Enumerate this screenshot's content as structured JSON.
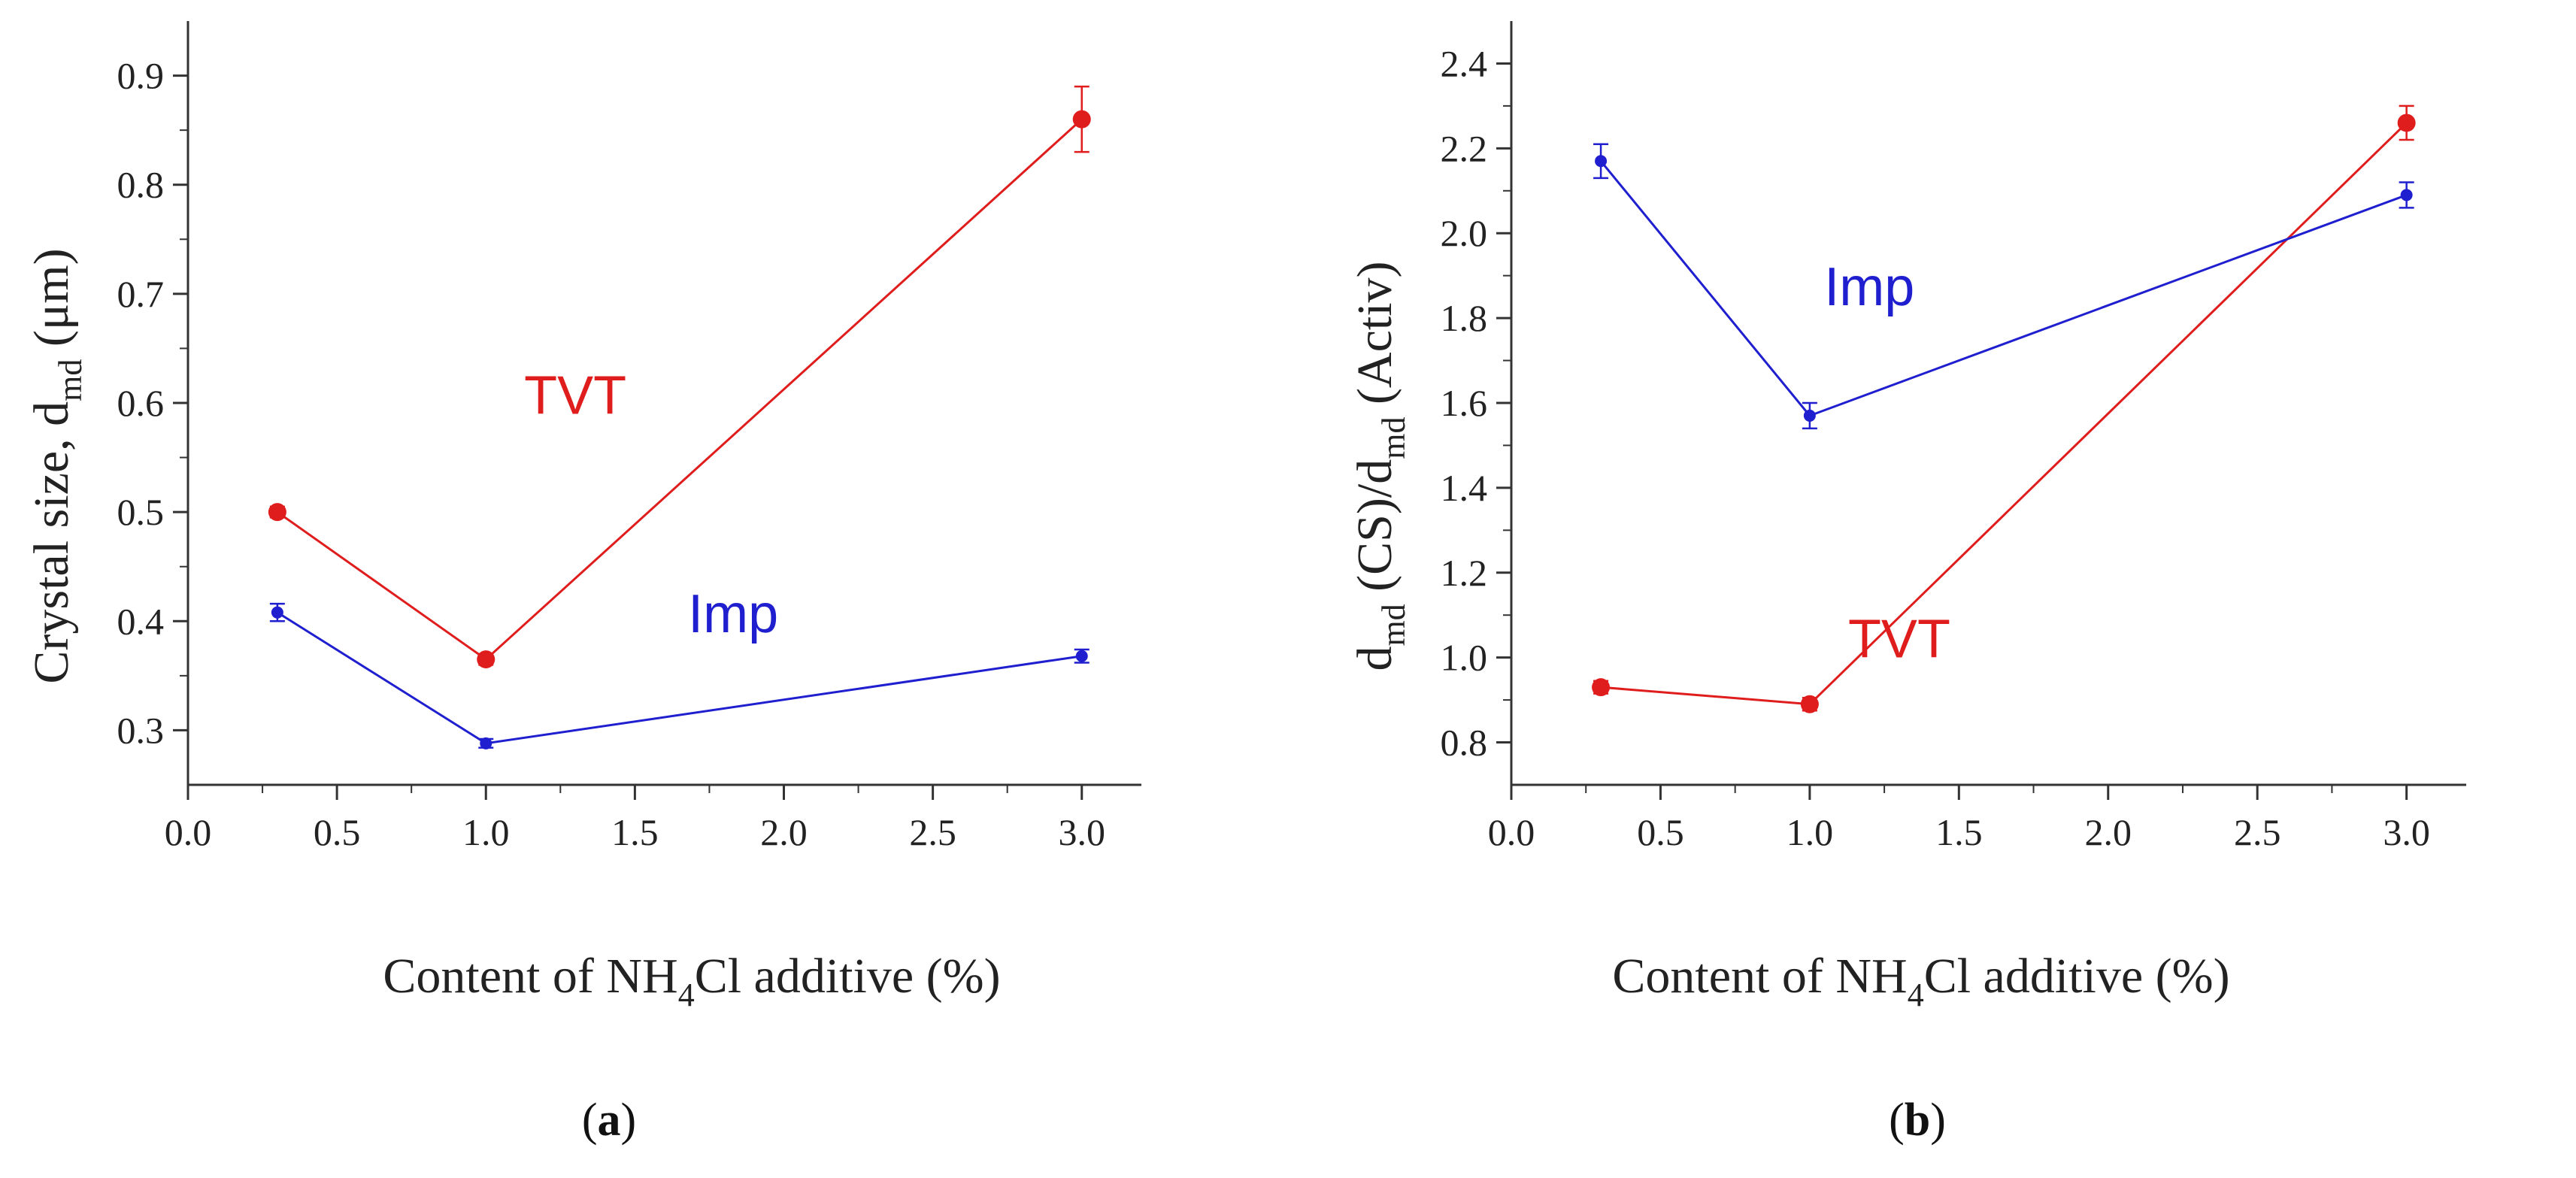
{
  "colors": {
    "red": "#e01d1d",
    "blue": "#1f1fcf",
    "axis": "#333333"
  },
  "chart_data": [
    {
      "type": "line",
      "panel": "a",
      "xlabel": {
        "pre": "Content of NH",
        "sub": "4",
        "post": "Cl additive (%)"
      },
      "ylabel": {
        "pre": "Crystal size, d",
        "sub": "md",
        "post": " (μm)"
      },
      "xlim": [
        0.0,
        3.2
      ],
      "ylim": [
        0.25,
        0.95
      ],
      "xticks": [
        0.0,
        0.5,
        1.0,
        1.5,
        2.0,
        2.5,
        3.0
      ],
      "xtick_labels": [
        "0.0",
        "0.5",
        "1.0",
        "1.5",
        "2.0",
        "2.5",
        "3.0"
      ],
      "yticks": [
        0.3,
        0.4,
        0.5,
        0.6,
        0.7,
        0.8,
        0.9
      ],
      "ytick_labels": [
        "0.3",
        "0.4",
        "0.5",
        "0.6",
        "0.7",
        "0.8",
        "0.9"
      ],
      "series": [
        {
          "name": "TVT",
          "color": "red",
          "x": [
            0.3,
            1.0,
            3.0
          ],
          "y": [
            0.5,
            0.365,
            0.86
          ],
          "err": [
            0.005,
            0.005,
            0.03
          ],
          "label_at": [
            1.3,
            0.59
          ]
        },
        {
          "name": "Imp",
          "color": "blue",
          "x": [
            0.3,
            1.0,
            3.0
          ],
          "y": [
            0.408,
            0.288,
            0.368
          ],
          "err": [
            0.008,
            0.004,
            0.006
          ],
          "label_at": [
            1.83,
            0.39
          ]
        }
      ]
    },
    {
      "type": "line",
      "panel": "b",
      "xlabel": {
        "pre": "Content of NH",
        "sub": "4",
        "post": "Cl additive (%)"
      },
      "ylabel": {
        "pre": "d",
        "sub": "md",
        "mid": " (CS)/d",
        "sub2": "md",
        "post": " (Activ)"
      },
      "xlim": [
        0.0,
        3.2
      ],
      "ylim": [
        0.7,
        2.5
      ],
      "xticks": [
        0.0,
        0.5,
        1.0,
        1.5,
        2.0,
        2.5,
        3.0
      ],
      "xtick_labels": [
        "0.0",
        "0.5",
        "1.0",
        "1.5",
        "2.0",
        "2.5",
        "3.0"
      ],
      "yticks": [
        0.8,
        1.0,
        1.2,
        1.4,
        1.6,
        1.8,
        2.0,
        2.2,
        2.4
      ],
      "ytick_labels": [
        "0.8",
        "1.0",
        "1.2",
        "1.4",
        "1.6",
        "1.8",
        "2.0",
        "2.2",
        "2.4"
      ],
      "series": [
        {
          "name": "TVT",
          "color": "red",
          "x": [
            0.3,
            1.0,
            3.0
          ],
          "y": [
            0.93,
            0.89,
            2.26
          ],
          "err": [
            0.015,
            0.015,
            0.04
          ],
          "label_at": [
            1.3,
            1.0
          ]
        },
        {
          "name": "Imp",
          "color": "blue",
          "x": [
            0.3,
            1.0,
            3.0
          ],
          "y": [
            2.17,
            1.57,
            2.09
          ],
          "err": [
            0.04,
            0.03,
            0.03
          ],
          "label_at": [
            1.2,
            1.83
          ]
        }
      ]
    }
  ],
  "panel_labels": [
    "a",
    "b"
  ]
}
